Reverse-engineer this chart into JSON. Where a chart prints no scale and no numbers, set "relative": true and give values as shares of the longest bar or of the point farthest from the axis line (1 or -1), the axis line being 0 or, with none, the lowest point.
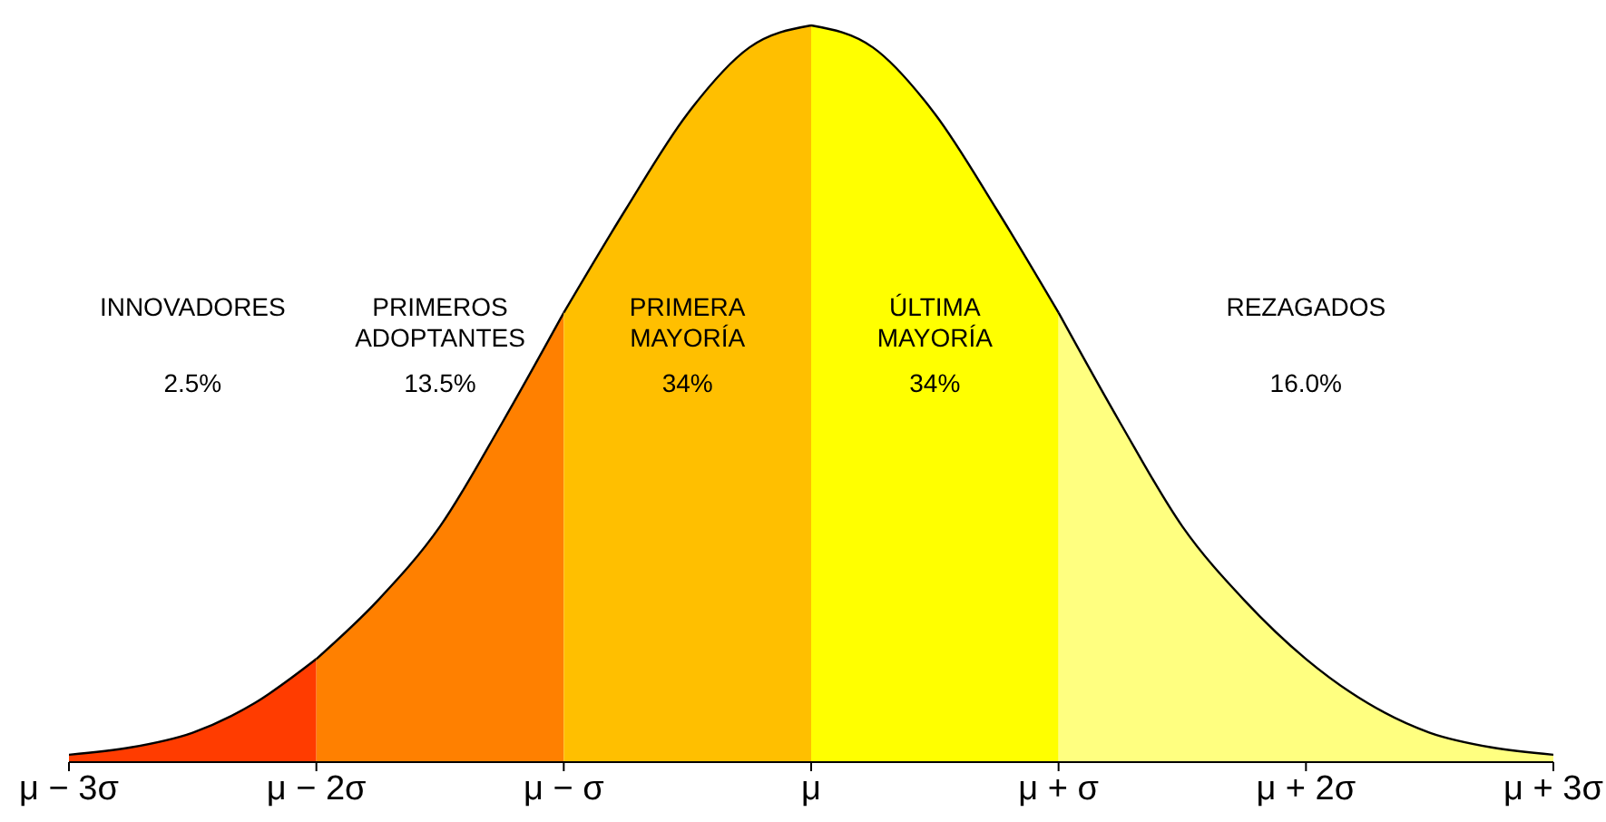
{
  "chart_data": {
    "type": "area",
    "relative": true,
    "x": [
      -3,
      -2.75,
      -2.5,
      -2.25,
      -2,
      -1.75,
      -1.5,
      -1.25,
      -1,
      -0.75,
      -0.5,
      -0.25,
      0,
      0.25,
      0.5,
      0.75,
      1,
      1.25,
      1.5,
      1.75,
      2,
      2.25,
      2.5,
      2.75,
      3
    ],
    "xlim": [
      -3,
      3
    ],
    "xticks": [
      {
        "value": -3,
        "label": "μ − 3σ"
      },
      {
        "value": -2,
        "label": "μ − 2σ"
      },
      {
        "value": -1,
        "label": "μ − σ"
      },
      {
        "value": 0,
        "label": "μ"
      },
      {
        "value": 1,
        "label": "μ + σ"
      },
      {
        "value": 2,
        "label": "μ + 2σ"
      },
      {
        "value": 3,
        "label": "μ + 3σ"
      }
    ],
    "series": [
      {
        "color": "#ff3c00",
        "values": [
          0.01,
          0.02,
          0.04,
          0.08,
          0.14,
          null,
          null,
          null,
          null,
          null,
          null,
          null,
          null,
          null,
          null,
          null,
          null,
          null,
          null,
          null,
          null,
          null,
          null,
          null,
          null
        ]
      },
      {
        "color": "#ff8000",
        "values": [
          null,
          null,
          null,
          null,
          0.14,
          0.22,
          0.32,
          0.46,
          0.61,
          null,
          null,
          null,
          null,
          null,
          null,
          null,
          null,
          null,
          null,
          null,
          null,
          null,
          null,
          null,
          null
        ]
      },
      {
        "color": "#ffbf00",
        "values": [
          null,
          null,
          null,
          null,
          null,
          null,
          null,
          null,
          0.61,
          0.75,
          0.88,
          0.97,
          1,
          null,
          null,
          null,
          null,
          null,
          null,
          null,
          null,
          null,
          null,
          null,
          null
        ]
      },
      {
        "color": "#ffff00",
        "values": [
          null,
          null,
          null,
          null,
          null,
          null,
          null,
          null,
          null,
          null,
          null,
          null,
          1,
          0.97,
          0.88,
          0.75,
          0.61,
          null,
          null,
          null,
          null,
          null,
          null,
          null,
          null
        ]
      },
      {
        "color": "#ffff80",
        "values": [
          null,
          null,
          null,
          null,
          null,
          null,
          null,
          null,
          null,
          null,
          null,
          null,
          null,
          null,
          null,
          null,
          0.61,
          0.46,
          0.32,
          0.22,
          0.14,
          0.08,
          0.04,
          0.02,
          0.01
        ]
      }
    ],
    "annotations": [
      "INNOVADORES",
      "2.5%",
      "PRIMEROS\nADOPTANTES",
      "13.5%",
      "PRIMERA\nMAYORÍA",
      "34%",
      "ÚLTIMA\nMAYORÍA",
      "34%",
      "REZAGADOS",
      "16.0%"
    ]
  }
}
